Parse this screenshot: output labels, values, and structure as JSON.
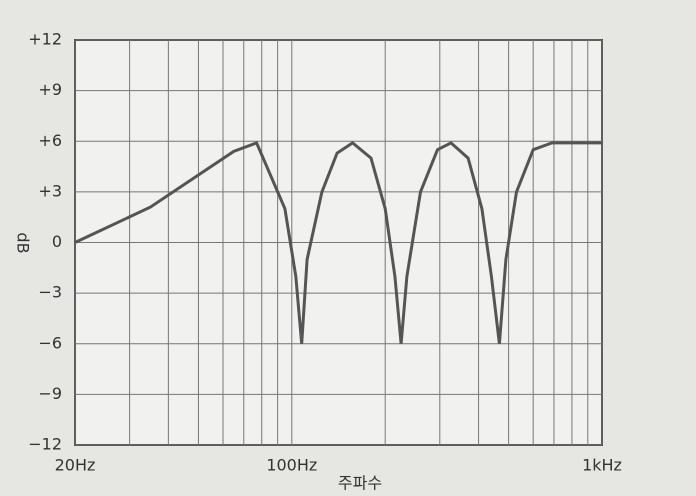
{
  "chart_data": {
    "type": "line",
    "x_label": "주파수",
    "y_label": "dB",
    "log_x": true,
    "grid": true,
    "color": "#555555",
    "xlim": [
      20,
      1000
    ],
    "ylim": [
      -12,
      12
    ],
    "xticks": [
      {
        "value": 20,
        "label": "20Hz"
      },
      {
        "value": 100,
        "label": "100Hz"
      },
      {
        "value": 1000,
        "label": "1kHz"
      }
    ],
    "x_minor_ticks": [
      30,
      40,
      50,
      60,
      70,
      80,
      90,
      200,
      300,
      400,
      500,
      600,
      700,
      800,
      900
    ],
    "yticks": [
      {
        "value": 12,
        "label": "+12"
      },
      {
        "value": 9,
        "label": "+9"
      },
      {
        "value": 6,
        "label": "+6"
      },
      {
        "value": 3,
        "label": "+3"
      },
      0,
      {
        "value": -3,
        "label": "−3"
      },
      {
        "value": -6,
        "label": "−6"
      },
      {
        "value": -9,
        "label": "−9"
      },
      {
        "value": -12,
        "label": "−12"
      }
    ],
    "x": [
      20,
      35,
      50,
      65,
      77,
      95,
      103,
      107.6,
      112,
      125,
      140,
      157,
      180,
      200,
      215,
      225,
      235,
      260,
      295,
      326,
      370,
      410,
      440,
      467,
      490,
      530,
      600,
      690,
      1000
    ],
    "values": [
      0,
      2.1,
      4,
      5.4,
      5.9,
      2,
      -2,
      -6,
      -1,
      3,
      5.3,
      5.9,
      5,
      2,
      -2,
      -6,
      -2,
      3,
      5.5,
      5.9,
      5,
      2,
      -2,
      -6,
      -1,
      3,
      5.5,
      5.9,
      5.9
    ]
  }
}
